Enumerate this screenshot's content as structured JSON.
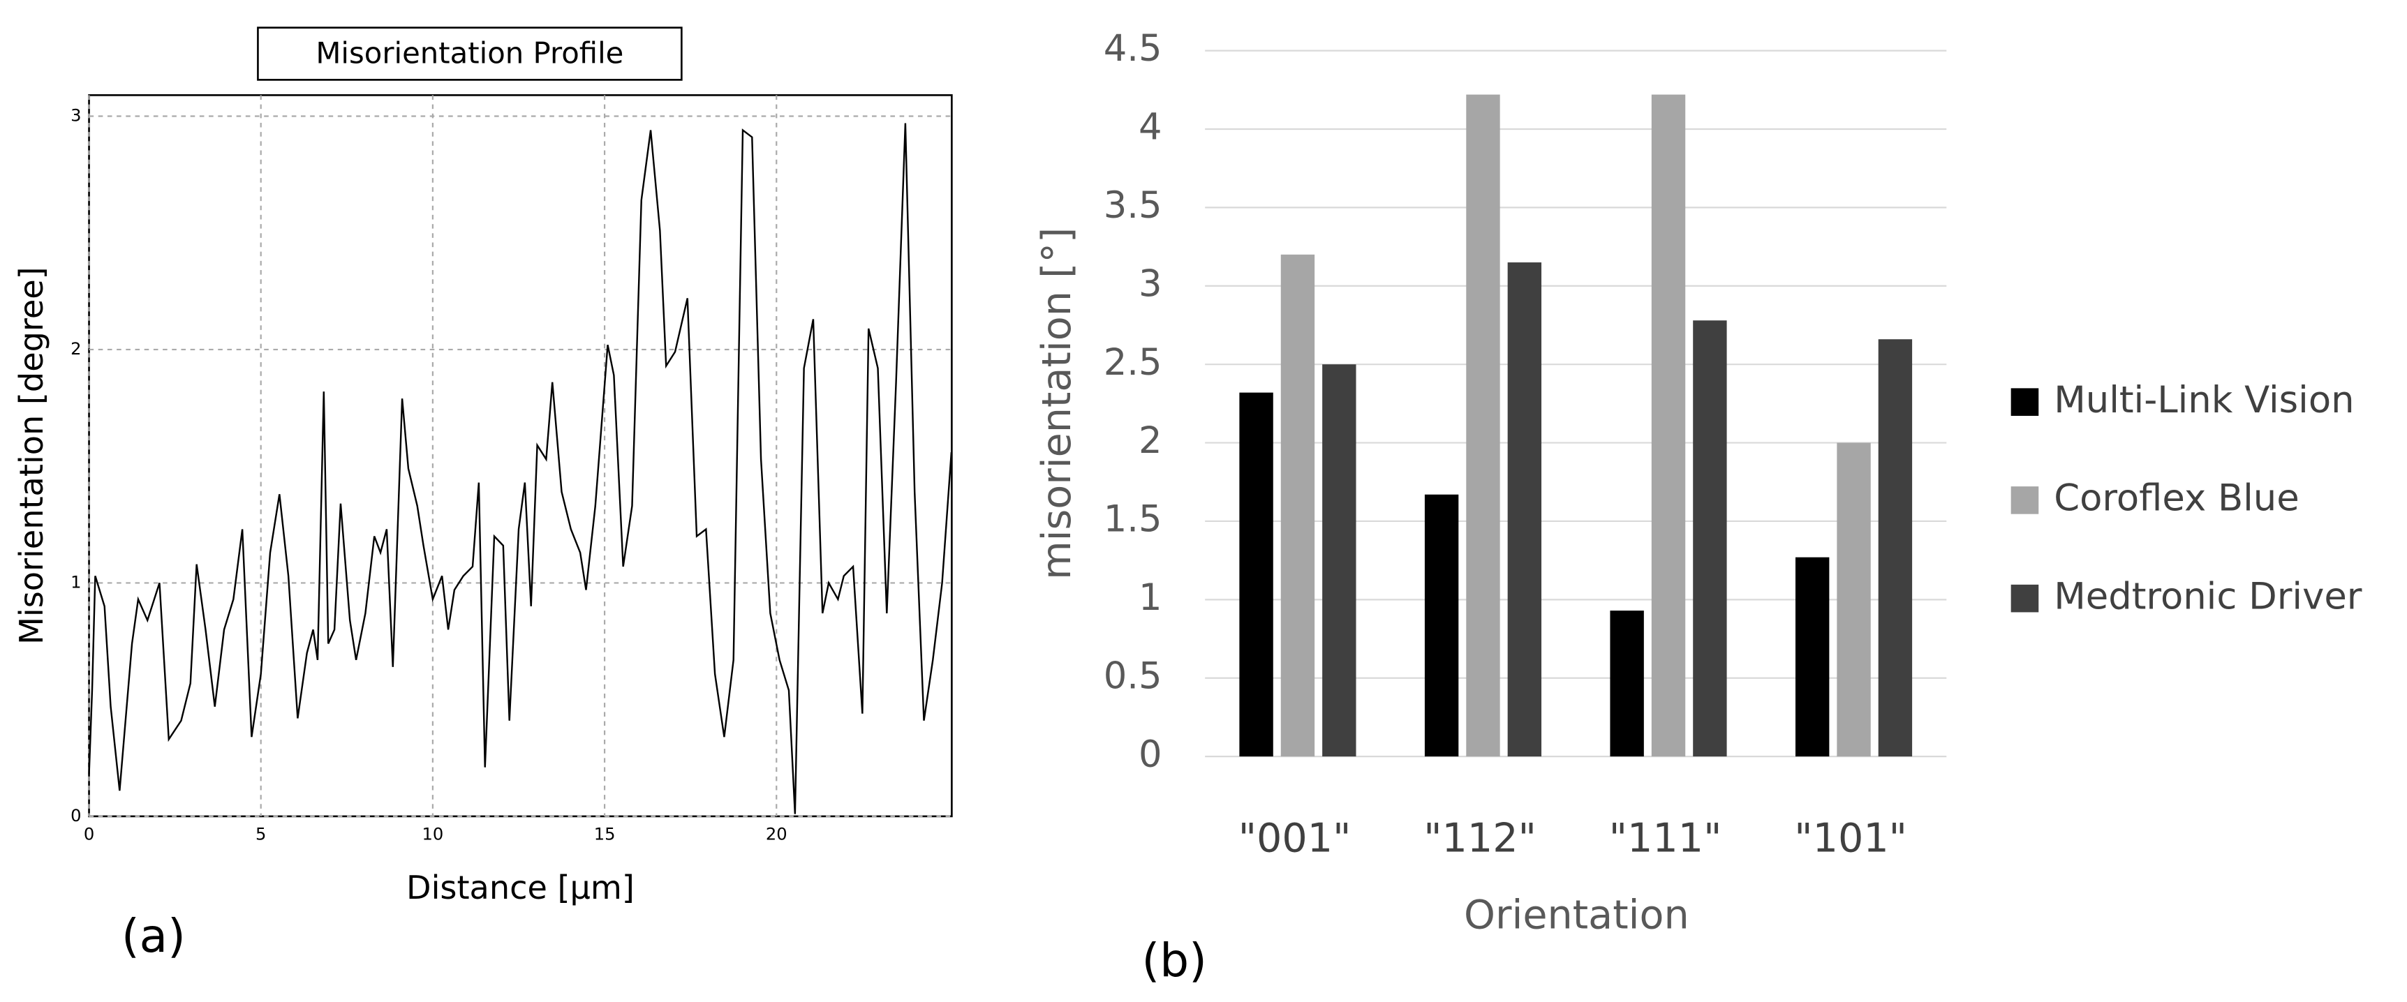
{
  "chart_data": [
    {
      "type": "line",
      "title": "Misorientation Profile",
      "panel_label": "(a)",
      "x_label": "Distance [µm]",
      "y_label": "Misorientation [degree]",
      "x": [
        0,
        0.09,
        0.18,
        0.45,
        0.63,
        0.89,
        1.25,
        1.43,
        1.7,
        2.05,
        2.32,
        2.68,
        2.95,
        3.13,
        3.39,
        3.66,
        3.93,
        4.2,
        4.46,
        4.73,
        5.0,
        5.27,
        5.54,
        5.8,
        6.07,
        6.34,
        6.52,
        6.65,
        6.83,
        6.96,
        7.14,
        7.32,
        7.59,
        7.77,
        8.04,
        8.3,
        8.48,
        8.66,
        8.84,
        9.11,
        9.29,
        9.55,
        9.73,
        10.0,
        10.27,
        10.45,
        10.63,
        10.89,
        11.16,
        11.34,
        11.52,
        11.79,
        12.05,
        12.23,
        12.5,
        12.68,
        12.86,
        13.04,
        13.3,
        13.48,
        13.75,
        14.02,
        14.29,
        14.46,
        14.73,
        15.09,
        15.27,
        15.54,
        15.8,
        16.07,
        16.34,
        16.61,
        16.79,
        17.05,
        17.41,
        17.68,
        17.95,
        18.21,
        18.48,
        18.75,
        19.02,
        19.29,
        19.55,
        19.82,
        20.09,
        20.36,
        20.54,
        20.8,
        21.07,
        21.34,
        21.52,
        21.79,
        21.96,
        22.23,
        22.5,
        22.68,
        22.95,
        23.21,
        23.48,
        23.75,
        24.02,
        24.29,
        24.55,
        24.82,
        25.09
      ],
      "series": [
        {
          "color": "#000000",
          "values": [
            0.18,
            0.54,
            1.03,
            0.9,
            0.47,
            0.11,
            0.74,
            0.93,
            0.84,
            1.0,
            0.33,
            0.41,
            0.57,
            1.08,
            0.8,
            0.47,
            0.8,
            0.93,
            1.23,
            0.34,
            0.61,
            1.13,
            1.38,
            1.03,
            0.42,
            0.7,
            0.8,
            0.67,
            1.82,
            0.74,
            0.8,
            1.34,
            0.84,
            0.67,
            0.87,
            1.2,
            1.13,
            1.23,
            0.64,
            1.79,
            1.49,
            1.33,
            1.16,
            0.93,
            1.03,
            0.8,
            0.97,
            1.03,
            1.07,
            1.43,
            0.21,
            1.2,
            1.16,
            0.41,
            1.23,
            1.43,
            0.9,
            1.59,
            1.53,
            1.86,
            1.39,
            1.23,
            1.13,
            0.97,
            1.33,
            2.02,
            1.89,
            1.07,
            1.33,
            2.64,
            2.94,
            2.51,
            1.93,
            1.99,
            2.22,
            1.2,
            1.23,
            0.61,
            0.34,
            0.67,
            2.94,
            2.91,
            1.53,
            0.87,
            0.67,
            0.54,
            0.01,
            1.92,
            2.13,
            0.87,
            1.0,
            0.93,
            1.03,
            1.07,
            0.44,
            2.09,
            1.92,
            0.87,
            1.86,
            2.97,
            1.39,
            0.41,
            0.67,
            1.0,
            1.56
          ]
        }
      ],
      "xlim": [
        0,
        25.1
      ],
      "xticks": [
        0,
        5,
        10,
        15,
        20
      ],
      "ylim": [
        0,
        3.09
      ],
      "yticks": [
        0,
        1,
        2,
        3
      ],
      "grid": true
    },
    {
      "type": "bar",
      "panel_label": "(b)",
      "x_label": "Orientation",
      "y_label": "misorientation [°]",
      "categories": [
        "\"001\"",
        "\"112\"",
        "\"111\"",
        "\"101\""
      ],
      "series": [
        {
          "name": "Multi-Link Vision",
          "color": "#000000",
          "values": [
            2.32,
            1.67,
            0.93,
            1.27
          ]
        },
        {
          "name": "Coroflex Blue",
          "color": "#a6a6a6",
          "values": [
            3.2,
            4.22,
            4.22,
            2.0
          ]
        },
        {
          "name": "Medtronic Driver",
          "color": "#404040",
          "values": [
            2.5,
            3.15,
            2.78,
            2.66
          ]
        }
      ],
      "ylim": [
        0,
        4.5
      ],
      "yticks": [
        0,
        0.5,
        1,
        1.5,
        2,
        2.5,
        3,
        3.5,
        4,
        4.5
      ],
      "grid": true,
      "legend": "right"
    }
  ]
}
